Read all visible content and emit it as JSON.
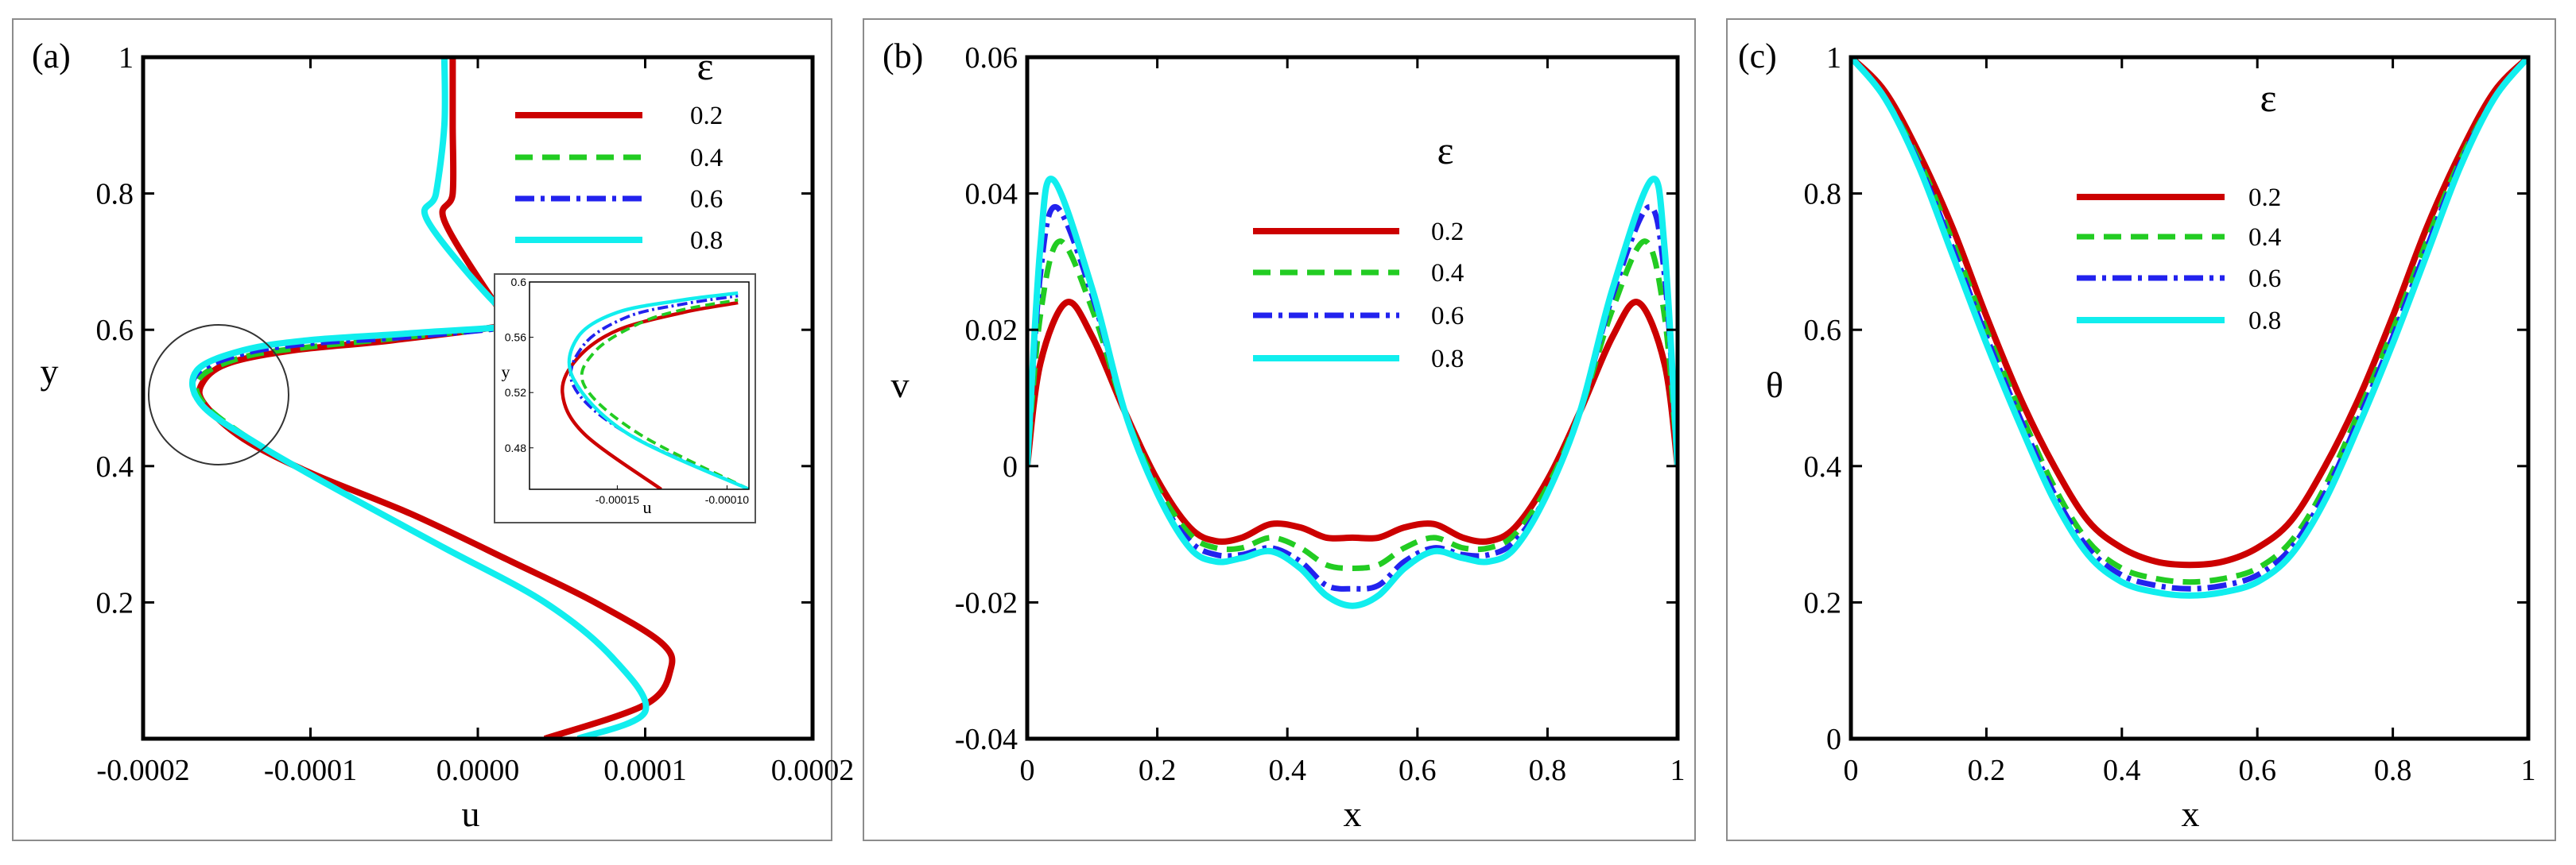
{
  "colors": {
    "0.2": "#cc0000",
    "0.4": "#22cc22",
    "0.6": "#2222ee",
    "0.8": "#11eeee"
  },
  "chart_data": [
    {
      "type": "line",
      "panel_label": "(a)",
      "xlabel": "u",
      "ylabel": "y",
      "xlim": [
        -0.0002,
        0.0002
      ],
      "ylim": [
        0,
        1
      ],
      "xticks": [
        "-0.0002",
        "-0.0001",
        "0.0000",
        "0.0001",
        "0.0002"
      ],
      "yticks": [
        "0.2",
        "0.4",
        "0.6",
        "0.8",
        "1"
      ],
      "legend_title": "ε",
      "legend_position": "top-right",
      "series": [
        {
          "name": "0.2",
          "x": [
            4e-05,
            0.0001,
            0.000115,
            0.00011,
            7e-05,
            2e-05,
            -4e-05,
            -0.0001,
            -0.00014,
            -0.000163,
            -0.000165,
            -0.00015,
            -0.00011,
            -5e-05,
            2e-05,
            1e-05,
            -2e-05,
            -1.5e-05,
            -1.5e-05,
            -1.5e-05
          ],
          "y": [
            0.0,
            0.05,
            0.1,
            0.14,
            0.2,
            0.26,
            0.33,
            0.39,
            0.44,
            0.49,
            0.52,
            0.55,
            0.57,
            0.585,
            0.61,
            0.64,
            0.76,
            0.8,
            0.9,
            1.0
          ]
        },
        {
          "name": "0.4",
          "x": [
            6e-05,
            0.0001,
            8e-05,
            4e-05,
            -2e-05,
            -8e-05,
            -0.00013,
            -0.000163,
            -0.000166,
            -0.00014,
            -0.0001,
            -4e-05,
            3e-05,
            1e-05,
            -3e-05,
            -2.5e-05,
            -2e-05,
            -2e-05
          ],
          "y": [
            0.0,
            0.04,
            0.12,
            0.2,
            0.28,
            0.36,
            0.43,
            0.49,
            0.53,
            0.56,
            0.575,
            0.59,
            0.61,
            0.64,
            0.76,
            0.8,
            0.9,
            1.0
          ]
        },
        {
          "name": "0.6",
          "x": [
            6e-05,
            0.0001,
            8e-05,
            4e-05,
            -2e-05,
            -8e-05,
            -0.00013,
            -0.000165,
            -0.000168,
            -0.00014,
            -0.0001,
            -4e-05,
            3e-05,
            1e-05,
            -3e-05,
            -2.5e-05,
            -2e-05,
            -2e-05
          ],
          "y": [
            0.0,
            0.04,
            0.12,
            0.2,
            0.28,
            0.36,
            0.43,
            0.49,
            0.535,
            0.565,
            0.58,
            0.59,
            0.61,
            0.64,
            0.76,
            0.8,
            0.9,
            1.0
          ]
        },
        {
          "name": "0.8",
          "x": [
            6e-05,
            0.0001,
            8e-05,
            4e-05,
            -2e-05,
            -8e-05,
            -0.00013,
            -0.000165,
            -0.000168,
            -0.00014,
            -0.0001,
            -4e-05,
            3e-05,
            1e-05,
            -3e-05,
            -2.5e-05,
            -2e-05,
            -2e-05
          ],
          "y": [
            0.0,
            0.04,
            0.12,
            0.2,
            0.28,
            0.36,
            0.43,
            0.49,
            0.54,
            0.57,
            0.585,
            0.595,
            0.61,
            0.64,
            0.76,
            0.8,
            0.9,
            1.0
          ]
        }
      ],
      "inset": {
        "xlabel": "u",
        "ylabel": "y",
        "xlim": [
          -0.00019,
          -9e-05
        ],
        "ylim": [
          0.45,
          0.6
        ],
        "xticks": [
          "-0.00015",
          "-0.00010"
        ],
        "yticks": [
          "0.48",
          "0.52",
          "0.56",
          "0.6"
        ],
        "series": [
          {
            "name": "0.2",
            "x": [
              -0.00013,
              -0.000165,
              -0.000175,
              -0.000168,
              -0.00015,
              -0.00012,
              -9.5e-05
            ],
            "y": [
              0.45,
              0.49,
              0.52,
              0.545,
              0.565,
              0.578,
              0.585
            ]
          },
          {
            "name": "0.4",
            "x": [
              -9e-05,
              -0.00014,
              -0.000165,
              -0.00016,
              -0.00014,
              -0.00012,
              -9.5e-05
            ],
            "y": [
              0.45,
              0.49,
              0.525,
              0.55,
              0.57,
              0.58,
              0.587
            ]
          },
          {
            "name": "0.6",
            "x": [
              -9e-05,
              -0.000145,
              -0.00017,
              -0.000165,
              -0.000145,
              -0.00012,
              -9.5e-05
            ],
            "y": [
              0.45,
              0.49,
              0.525,
              0.555,
              0.575,
              0.584,
              0.59
            ]
          },
          {
            "name": "0.8",
            "x": [
              -9e-05,
              -0.000145,
              -0.00017,
              -0.000168,
              -0.00015,
              -0.00012,
              -9.5e-05
            ],
            "y": [
              0.45,
              0.49,
              0.53,
              0.56,
              0.578,
              0.587,
              0.592
            ]
          }
        ]
      }
    },
    {
      "type": "line",
      "panel_label": "(b)",
      "xlabel": "x",
      "ylabel": "v",
      "xlim": [
        0,
        1
      ],
      "ylim": [
        -0.04,
        0.06
      ],
      "xticks": [
        "0",
        "0.2",
        "0.4",
        "0.6",
        "0.8",
        "1"
      ],
      "yticks": [
        "-0.04",
        "-0.02",
        "0",
        "0.02",
        "0.04",
        "0.06"
      ],
      "legend_title": "ε",
      "legend_position": "center",
      "series": [
        {
          "name": "0.2",
          "x": [
            0,
            0.02,
            0.06,
            0.1,
            0.15,
            0.2,
            0.25,
            0.29,
            0.33,
            0.375,
            0.42,
            0.46,
            0.5,
            0.54,
            0.58,
            0.625,
            0.67,
            0.71,
            0.75,
            0.8,
            0.85,
            0.9,
            0.94,
            0.98,
            1.0
          ],
          "y": [
            0.0,
            0.015,
            0.024,
            0.019,
            0.008,
            -0.002,
            -0.009,
            -0.011,
            -0.0105,
            -0.0085,
            -0.009,
            -0.0105,
            -0.0105,
            -0.0105,
            -0.009,
            -0.0085,
            -0.0105,
            -0.011,
            -0.009,
            -0.002,
            0.008,
            0.019,
            0.024,
            0.015,
            0.0
          ]
        },
        {
          "name": "0.4",
          "x": [
            0,
            0.02,
            0.05,
            0.1,
            0.15,
            0.2,
            0.25,
            0.29,
            0.33,
            0.375,
            0.42,
            0.46,
            0.5,
            0.54,
            0.58,
            0.625,
            0.67,
            0.71,
            0.75,
            0.8,
            0.85,
            0.9,
            0.95,
            0.98,
            1.0
          ],
          "y": [
            0.0,
            0.022,
            0.033,
            0.023,
            0.008,
            -0.003,
            -0.01,
            -0.012,
            -0.012,
            -0.0105,
            -0.012,
            -0.0145,
            -0.015,
            -0.0145,
            -0.012,
            -0.0105,
            -0.012,
            -0.012,
            -0.01,
            -0.003,
            0.008,
            0.023,
            0.033,
            0.022,
            0.0
          ]
        },
        {
          "name": "0.6",
          "x": [
            0,
            0.02,
            0.045,
            0.1,
            0.15,
            0.2,
            0.25,
            0.29,
            0.33,
            0.375,
            0.42,
            0.46,
            0.5,
            0.54,
            0.58,
            0.625,
            0.67,
            0.71,
            0.75,
            0.8,
            0.85,
            0.9,
            0.955,
            0.98,
            1.0
          ],
          "y": [
            0.0,
            0.028,
            0.038,
            0.025,
            0.008,
            -0.004,
            -0.011,
            -0.013,
            -0.013,
            -0.012,
            -0.014,
            -0.0175,
            -0.018,
            -0.0175,
            -0.014,
            -0.012,
            -0.013,
            -0.013,
            -0.011,
            -0.004,
            0.008,
            0.025,
            0.038,
            0.028,
            0.0
          ]
        },
        {
          "name": "0.8",
          "x": [
            0,
            0.02,
            0.04,
            0.1,
            0.15,
            0.2,
            0.25,
            0.29,
            0.33,
            0.375,
            0.42,
            0.46,
            0.5,
            0.54,
            0.58,
            0.625,
            0.67,
            0.71,
            0.75,
            0.8,
            0.85,
            0.9,
            0.96,
            0.98,
            1.0
          ],
          "y": [
            0.0,
            0.032,
            0.042,
            0.026,
            0.008,
            -0.004,
            -0.012,
            -0.014,
            -0.0135,
            -0.0125,
            -0.015,
            -0.019,
            -0.0205,
            -0.019,
            -0.015,
            -0.0125,
            -0.0135,
            -0.014,
            -0.012,
            -0.004,
            0.008,
            0.026,
            0.042,
            0.032,
            0.0
          ]
        }
      ]
    },
    {
      "type": "line",
      "panel_label": "(c)",
      "xlabel": "x",
      "ylabel": "θ",
      "xlim": [
        0,
        1
      ],
      "ylim": [
        0,
        1
      ],
      "xticks": [
        "0",
        "0.2",
        "0.4",
        "0.6",
        "0.8",
        "1"
      ],
      "yticks": [
        "0",
        "0.2",
        "0.4",
        "0.6",
        "0.8",
        "1"
      ],
      "legend_title": "ε",
      "legend_position": "top-center",
      "series": [
        {
          "name": "0.2",
          "x": [
            0,
            0.05,
            0.1,
            0.15,
            0.2,
            0.25,
            0.3,
            0.35,
            0.4,
            0.45,
            0.5,
            0.55,
            0.6,
            0.65,
            0.7,
            0.75,
            0.8,
            0.85,
            0.9,
            0.95,
            1.0
          ],
          "y": [
            1.0,
            0.95,
            0.86,
            0.75,
            0.62,
            0.5,
            0.4,
            0.32,
            0.28,
            0.26,
            0.255,
            0.26,
            0.28,
            0.32,
            0.4,
            0.5,
            0.62,
            0.75,
            0.86,
            0.95,
            1.0
          ]
        },
        {
          "name": "0.4",
          "x": [
            0,
            0.05,
            0.1,
            0.15,
            0.2,
            0.25,
            0.3,
            0.35,
            0.4,
            0.45,
            0.5,
            0.55,
            0.6,
            0.65,
            0.7,
            0.75,
            0.8,
            0.85,
            0.9,
            0.95,
            1.0
          ],
          "y": [
            1.0,
            0.94,
            0.85,
            0.73,
            0.6,
            0.48,
            0.37,
            0.29,
            0.25,
            0.235,
            0.23,
            0.235,
            0.25,
            0.29,
            0.37,
            0.48,
            0.6,
            0.73,
            0.85,
            0.94,
            1.0
          ]
        },
        {
          "name": "0.6",
          "x": [
            0,
            0.05,
            0.1,
            0.15,
            0.2,
            0.25,
            0.3,
            0.35,
            0.4,
            0.45,
            0.5,
            0.55,
            0.6,
            0.65,
            0.7,
            0.75,
            0.8,
            0.85,
            0.9,
            0.95,
            1.0
          ],
          "y": [
            1.0,
            0.94,
            0.845,
            0.72,
            0.59,
            0.47,
            0.36,
            0.28,
            0.24,
            0.225,
            0.22,
            0.225,
            0.24,
            0.28,
            0.36,
            0.47,
            0.59,
            0.72,
            0.845,
            0.94,
            1.0
          ]
        },
        {
          "name": "0.8",
          "x": [
            0,
            0.05,
            0.1,
            0.15,
            0.2,
            0.25,
            0.3,
            0.35,
            0.4,
            0.45,
            0.5,
            0.55,
            0.6,
            0.65,
            0.7,
            0.75,
            0.8,
            0.85,
            0.9,
            0.95,
            1.0
          ],
          "y": [
            1.0,
            0.94,
            0.84,
            0.71,
            0.58,
            0.46,
            0.35,
            0.27,
            0.23,
            0.215,
            0.21,
            0.215,
            0.23,
            0.27,
            0.35,
            0.46,
            0.58,
            0.71,
            0.84,
            0.94,
            1.0
          ]
        }
      ]
    }
  ]
}
